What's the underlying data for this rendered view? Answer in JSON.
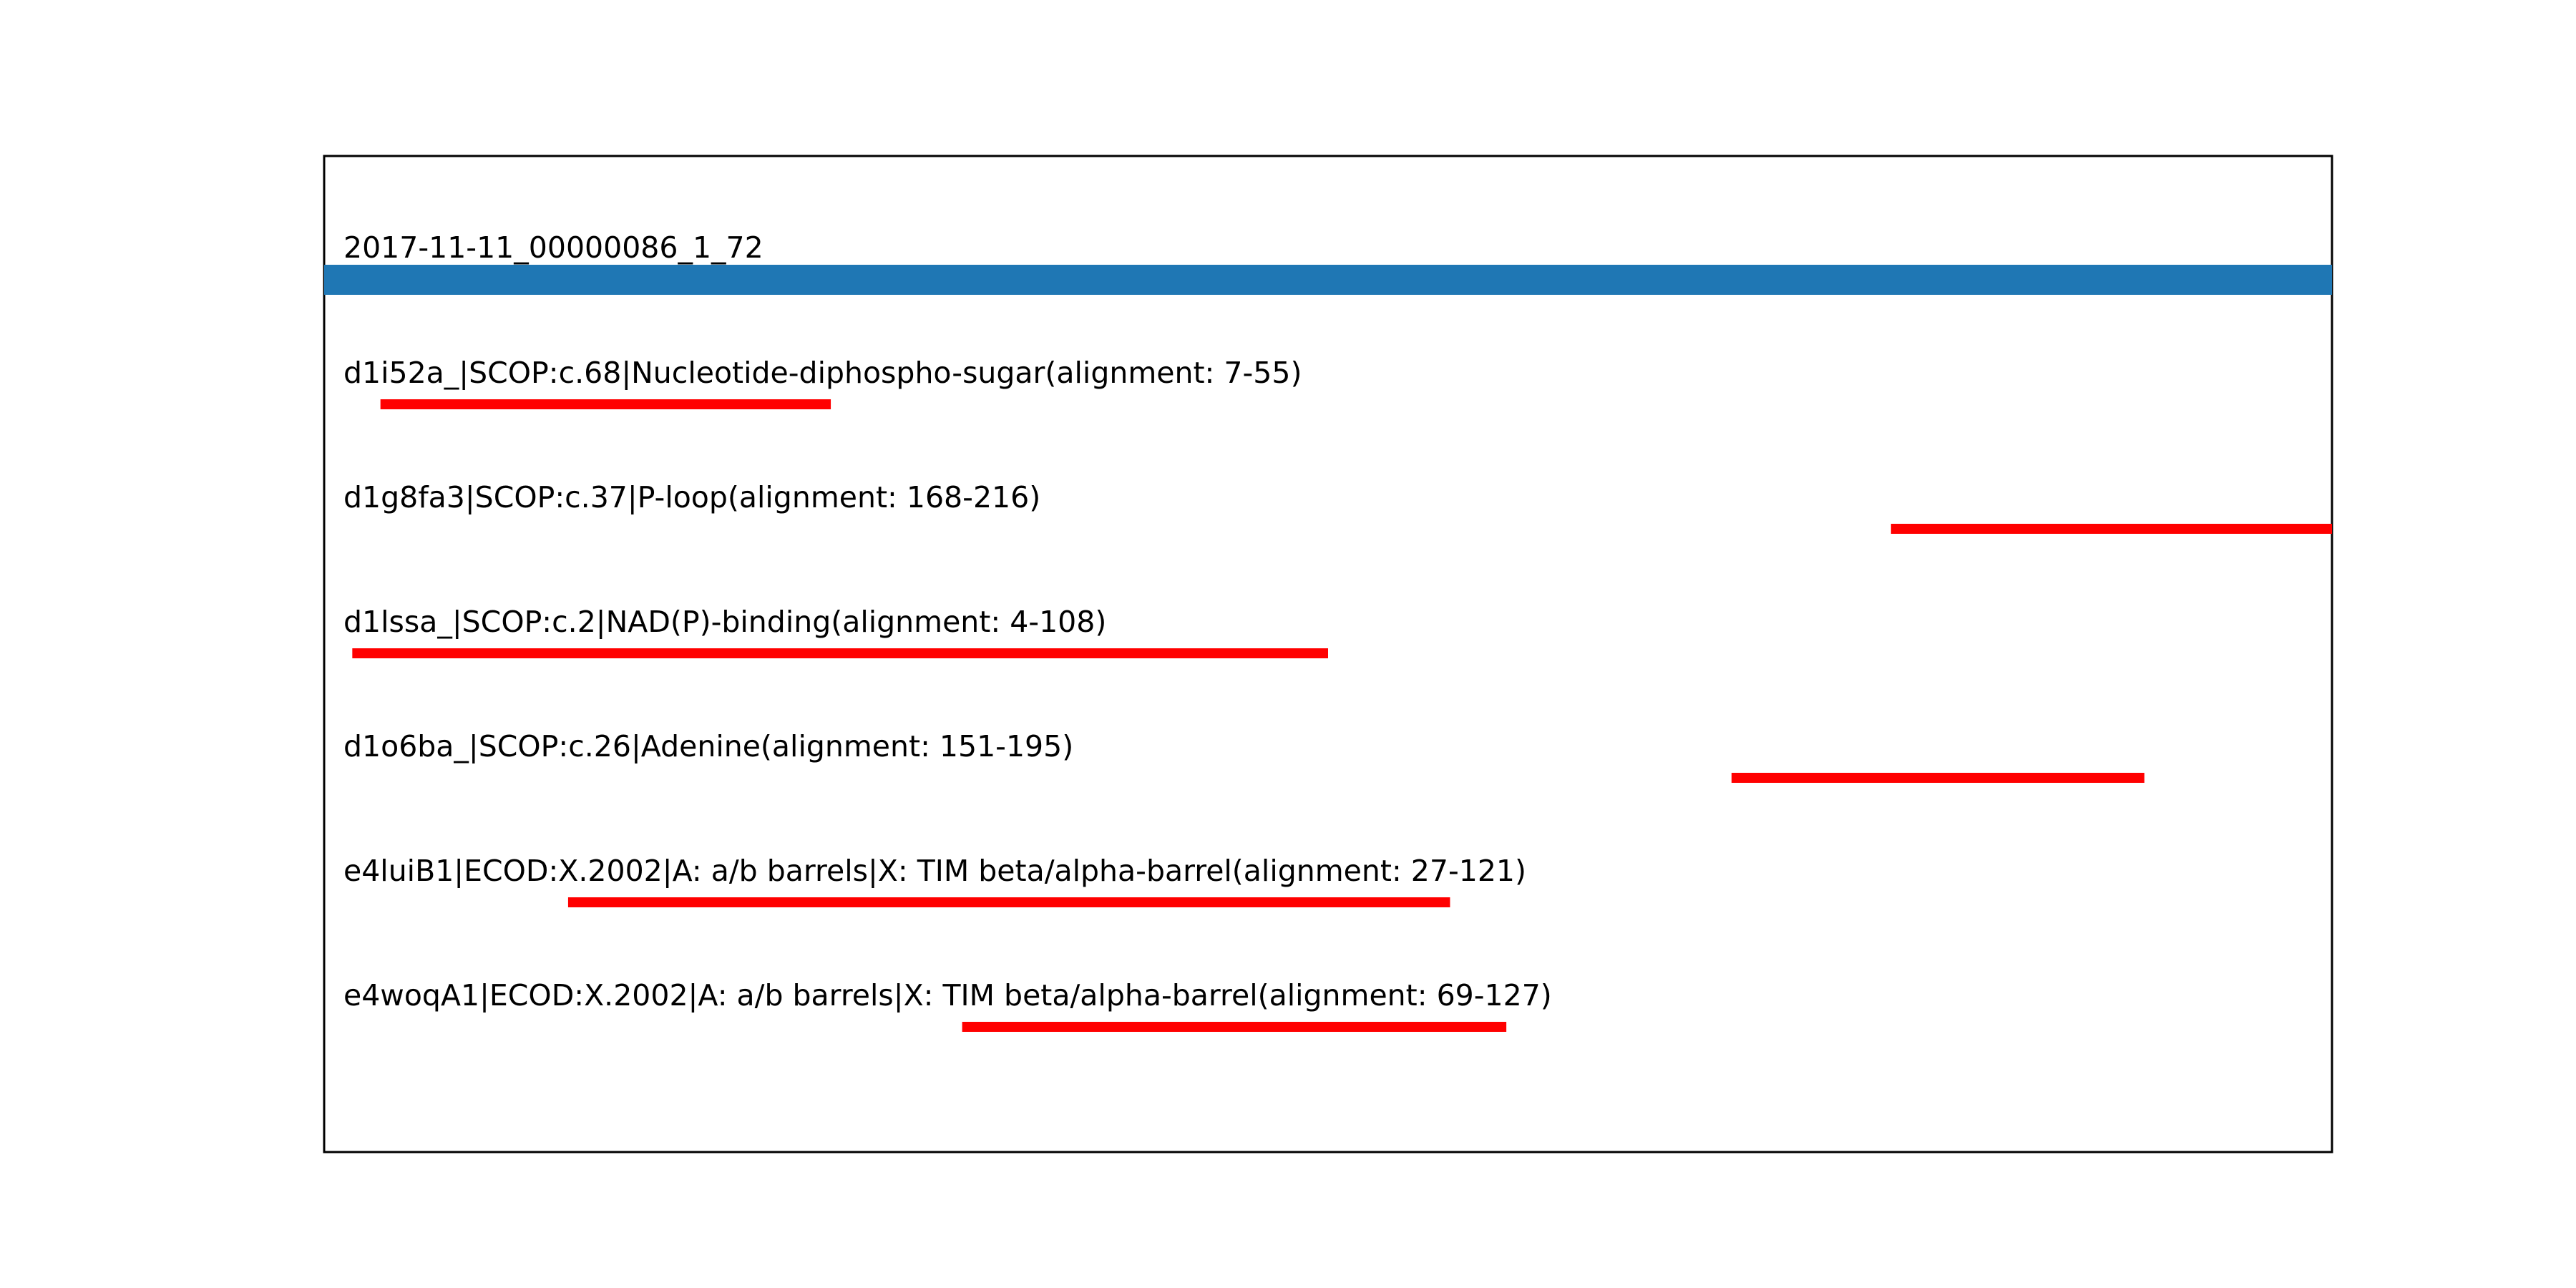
{
  "chart_data": {
    "type": "bar",
    "orientation": "horizontal",
    "query": {
      "name": "2017-11-11_00000086_1_72",
      "color": "#1f77b4",
      "extent": [
        1,
        215
      ]
    },
    "xlim": [
      1,
      215
    ],
    "hit_color": "#ff0000",
    "hits": [
      {
        "label": "d1i52a_|SCOP:c.68|Nucleotide-diphospho-sugar(alignment: 7-55)",
        "start": 7,
        "end": 55
      },
      {
        "label": "d1g8fa3|SCOP:c.37|P-loop(alignment: 168-216)",
        "start": 168,
        "end": 216
      },
      {
        "label": "d1lssa_|SCOP:c.2|NAD(P)-binding(alignment: 4-108)",
        "start": 4,
        "end": 108
      },
      {
        "label": "d1o6ba_|SCOP:c.26|Adenine(alignment: 151-195)",
        "start": 151,
        "end": 195
      },
      {
        "label": "e4luiB1|ECOD:X.2002|A: a/b barrels|X: TIM beta/alpha-barrel(alignment: 27-121)",
        "start": 27,
        "end": 121
      },
      {
        "label": "e4woqA1|ECOD:X.2002|A: a/b barrels|X: TIM beta/alpha-barrel(alignment: 69-127)",
        "start": 69,
        "end": 127
      }
    ]
  }
}
